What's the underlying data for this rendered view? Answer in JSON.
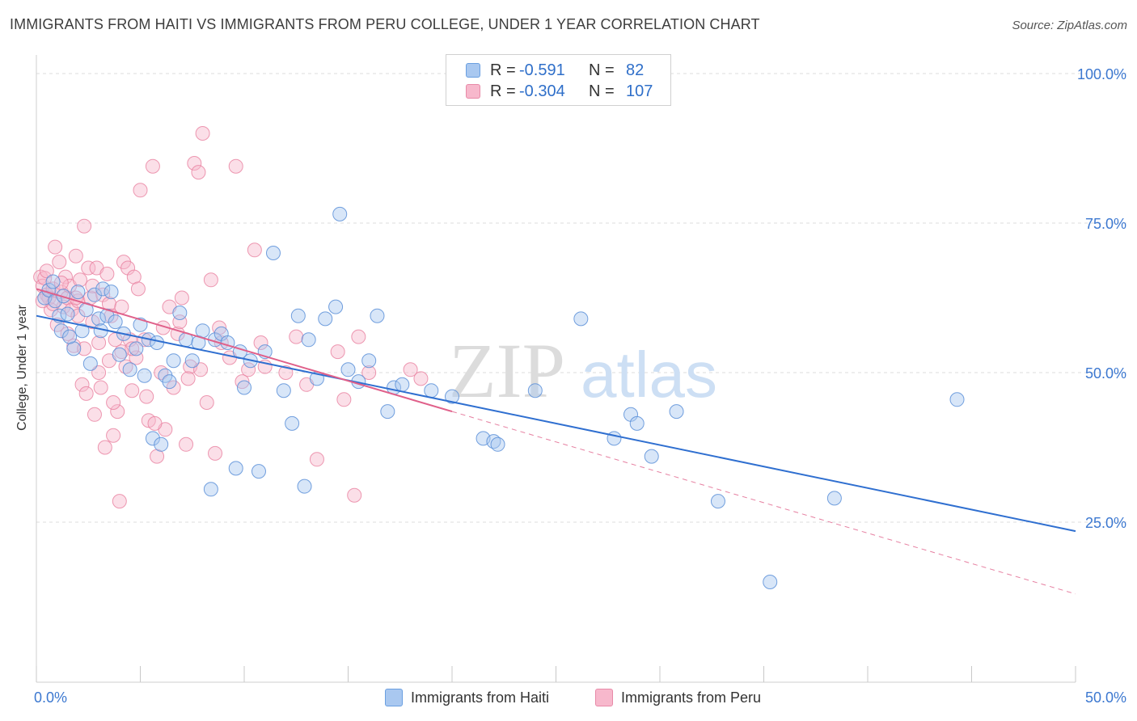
{
  "header": {
    "title": "IMMIGRANTS FROM HAITI VS IMMIGRANTS FROM PERU COLLEGE, UNDER 1 YEAR CORRELATION CHART",
    "source": "Source: ZipAtlas.com"
  },
  "legend": {
    "rows": [
      {
        "r_label": "R =",
        "r_value": "-0.591",
        "n_label": "N =",
        "n_value": "82",
        "color": "#a9c8f0",
        "border": "#6a9fe0"
      },
      {
        "r_label": "R =",
        "r_value": "-0.304",
        "n_label": "N =",
        "n_value": "107",
        "color": "#f7b8cc",
        "border": "#e88aa8"
      }
    ]
  },
  "bottom_legend": {
    "items": [
      {
        "label": "Immigrants from Haiti",
        "color": "#a9c8f0",
        "border": "#6a9fe0"
      },
      {
        "label": "Immigrants from Peru",
        "color": "#f7b8cc",
        "border": "#e88aa8"
      }
    ]
  },
  "watermark": {
    "part1": "ZIP",
    "part2": "atlas"
  },
  "chart_data": {
    "type": "scatter",
    "title": "IMMIGRANTS FROM HAITI VS IMMIGRANTS FROM PERU COLLEGE, UNDER 1 YEAR CORRELATION CHART",
    "xlabel": "",
    "ylabel": "College, Under 1 year",
    "xlim": [
      0,
      50
    ],
    "ylim": [
      0,
      100
    ],
    "x_tick_labels": [
      "0.0%",
      "50.0%"
    ],
    "y_tick_labels": [
      "100.0%",
      "75.0%",
      "50.0%",
      "25.0%"
    ],
    "y_ticks": [
      100,
      75,
      50,
      25
    ],
    "grid": true,
    "legend_position": "top-center",
    "colors": {
      "haiti_fill": "#a9c8f0",
      "haiti_stroke": "#5b8fd8",
      "haiti_line": "#2f6fd0",
      "peru_fill": "#f7b8cc",
      "peru_stroke": "#e8809f",
      "peru_line": "#e0608a"
    },
    "series": [
      {
        "name": "Immigrants from Haiti",
        "r": -0.591,
        "n": 82,
        "trend": {
          "x": [
            0,
            50
          ],
          "y": [
            59.5,
            23.5
          ]
        },
        "points": [
          [
            0.4,
            62.5
          ],
          [
            0.6,
            63.8
          ],
          [
            0.8,
            65.2
          ],
          [
            0.9,
            62.0
          ],
          [
            1.1,
            59.5
          ],
          [
            1.2,
            57.0
          ],
          [
            1.3,
            62.8
          ],
          [
            1.5,
            59.8
          ],
          [
            1.8,
            54.0
          ],
          [
            2.0,
            63.5
          ],
          [
            2.2,
            57.0
          ],
          [
            2.4,
            60.5
          ],
          [
            2.6,
            51.5
          ],
          [
            2.8,
            63.0
          ],
          [
            3.0,
            59.0
          ],
          [
            3.2,
            64.0
          ],
          [
            3.4,
            59.5
          ],
          [
            3.6,
            63.5
          ],
          [
            3.8,
            58.5
          ],
          [
            4.0,
            53.0
          ],
          [
            4.2,
            56.5
          ],
          [
            4.5,
            50.5
          ],
          [
            4.8,
            54.0
          ],
          [
            5.0,
            58.0
          ],
          [
            5.2,
            49.5
          ],
          [
            5.4,
            55.5
          ],
          [
            5.6,
            39.0
          ],
          [
            5.8,
            55.0
          ],
          [
            6.0,
            38.0
          ],
          [
            6.2,
            49.5
          ],
          [
            6.4,
            48.5
          ],
          [
            6.9,
            60.0
          ],
          [
            7.2,
            55.5
          ],
          [
            7.5,
            52.0
          ],
          [
            7.8,
            55.0
          ],
          [
            8.0,
            57.0
          ],
          [
            8.4,
            30.5
          ],
          [
            8.6,
            55.5
          ],
          [
            8.9,
            56.5
          ],
          [
            9.2,
            55.0
          ],
          [
            9.6,
            34.0
          ],
          [
            9.8,
            53.5
          ],
          [
            10.0,
            47.5
          ],
          [
            10.3,
            52.0
          ],
          [
            10.7,
            33.5
          ],
          [
            11.0,
            53.5
          ],
          [
            11.4,
            70.0
          ],
          [
            11.9,
            47.0
          ],
          [
            12.3,
            41.5
          ],
          [
            12.6,
            59.5
          ],
          [
            12.9,
            31.0
          ],
          [
            13.1,
            55.5
          ],
          [
            13.5,
            49.0
          ],
          [
            13.9,
            59.0
          ],
          [
            14.4,
            61.0
          ],
          [
            14.6,
            76.5
          ],
          [
            15.0,
            50.5
          ],
          [
            15.5,
            48.5
          ],
          [
            16.0,
            52.0
          ],
          [
            16.4,
            59.5
          ],
          [
            16.9,
            43.5
          ],
          [
            17.2,
            47.5
          ],
          [
            17.6,
            48.0
          ],
          [
            19.0,
            47.0
          ],
          [
            20.0,
            46.0
          ],
          [
            21.5,
            39.0
          ],
          [
            22.0,
            38.5
          ],
          [
            22.2,
            38.0
          ],
          [
            24.0,
            47.0
          ],
          [
            26.2,
            59.0
          ],
          [
            27.8,
            39.0
          ],
          [
            28.6,
            43.0
          ],
          [
            28.9,
            41.5
          ],
          [
            29.6,
            36.0
          ],
          [
            30.8,
            43.5
          ],
          [
            32.8,
            28.5
          ],
          [
            35.3,
            15.0
          ],
          [
            44.3,
            45.5
          ],
          [
            38.4,
            29.0
          ],
          [
            6.6,
            52.0
          ],
          [
            3.1,
            57.0
          ],
          [
            1.6,
            56.0
          ]
        ]
      },
      {
        "name": "Immigrants from Peru",
        "r": -0.304,
        "n": 107,
        "trend": {
          "x": [
            0,
            20
          ],
          "y": [
            64.0,
            43.5
          ]
        },
        "trend_extension": {
          "x": [
            20,
            50
          ],
          "y": [
            43.5,
            13.0
          ]
        },
        "points": [
          [
            0.2,
            66.0
          ],
          [
            0.3,
            64.5
          ],
          [
            0.4,
            65.8
          ],
          [
            0.5,
            63.0
          ],
          [
            0.6,
            62.5
          ],
          [
            0.7,
            60.5
          ],
          [
            0.8,
            64.0
          ],
          [
            0.9,
            71.0
          ],
          [
            1.0,
            58.0
          ],
          [
            1.1,
            68.5
          ],
          [
            1.2,
            63.5
          ],
          [
            1.3,
            61.0
          ],
          [
            1.4,
            66.0
          ],
          [
            1.5,
            62.5
          ],
          [
            1.6,
            64.5
          ],
          [
            1.7,
            60.5
          ],
          [
            1.8,
            54.5
          ],
          [
            1.9,
            69.5
          ],
          [
            2.0,
            62.0
          ],
          [
            2.1,
            65.5
          ],
          [
            2.2,
            48.0
          ],
          [
            2.3,
            74.5
          ],
          [
            2.4,
            46.5
          ],
          [
            2.5,
            67.5
          ],
          [
            2.6,
            62.5
          ],
          [
            2.7,
            58.5
          ],
          [
            2.8,
            43.0
          ],
          [
            2.9,
            67.5
          ],
          [
            3.0,
            55.0
          ],
          [
            3.1,
            47.5
          ],
          [
            3.2,
            63.0
          ],
          [
            3.3,
            37.5
          ],
          [
            3.4,
            66.5
          ],
          [
            3.5,
            61.5
          ],
          [
            3.6,
            59.5
          ],
          [
            3.7,
            39.5
          ],
          [
            3.8,
            55.5
          ],
          [
            3.9,
            43.5
          ],
          [
            4.0,
            28.5
          ],
          [
            4.1,
            61.0
          ],
          [
            4.2,
            68.5
          ],
          [
            4.3,
            51.0
          ],
          [
            4.4,
            67.5
          ],
          [
            4.5,
            55.5
          ],
          [
            4.6,
            47.0
          ],
          [
            4.7,
            66.0
          ],
          [
            4.8,
            52.5
          ],
          [
            5.0,
            80.5
          ],
          [
            5.2,
            55.5
          ],
          [
            5.4,
            42.0
          ],
          [
            5.6,
            84.5
          ],
          [
            5.8,
            36.0
          ],
          [
            6.0,
            50.0
          ],
          [
            6.2,
            40.5
          ],
          [
            6.4,
            61.0
          ],
          [
            6.6,
            47.5
          ],
          [
            6.8,
            56.5
          ],
          [
            7.0,
            62.5
          ],
          [
            7.2,
            38.0
          ],
          [
            7.4,
            51.0
          ],
          [
            7.6,
            85.0
          ],
          [
            7.8,
            83.5
          ],
          [
            8.0,
            90.0
          ],
          [
            8.2,
            45.0
          ],
          [
            8.4,
            65.5
          ],
          [
            8.6,
            36.5
          ],
          [
            8.9,
            55.0
          ],
          [
            9.3,
            52.5
          ],
          [
            9.6,
            84.5
          ],
          [
            10.2,
            50.5
          ],
          [
            10.5,
            70.5
          ],
          [
            11.0,
            51.0
          ],
          [
            13.5,
            35.5
          ],
          [
            14.5,
            53.5
          ],
          [
            14.8,
            45.5
          ],
          [
            15.3,
            29.5
          ],
          [
            15.5,
            56.0
          ],
          [
            18.0,
            50.5
          ],
          [
            18.5,
            49.0
          ],
          [
            3.5,
            52.0
          ],
          [
            4.9,
            64.0
          ],
          [
            2.7,
            64.5
          ],
          [
            1.5,
            56.5
          ],
          [
            6.1,
            57.5
          ],
          [
            7.3,
            49.0
          ],
          [
            0.5,
            67.0
          ],
          [
            0.8,
            61.5
          ],
          [
            1.2,
            65.0
          ],
          [
            2.0,
            59.5
          ],
          [
            3.7,
            45.0
          ],
          [
            4.6,
            54.0
          ],
          [
            5.7,
            41.5
          ],
          [
            8.8,
            57.5
          ],
          [
            9.9,
            48.5
          ],
          [
            12.5,
            56.0
          ],
          [
            13.0,
            48.0
          ],
          [
            16.0,
            50.0
          ],
          [
            0.3,
            62.0
          ],
          [
            1.9,
            62.5
          ],
          [
            2.3,
            54.0
          ],
          [
            3.0,
            50.0
          ],
          [
            4.1,
            53.5
          ],
          [
            5.3,
            46.0
          ],
          [
            6.9,
            58.5
          ],
          [
            7.9,
            50.5
          ],
          [
            10.8,
            55.0
          ],
          [
            12.0,
            50.0
          ]
        ]
      }
    ]
  }
}
